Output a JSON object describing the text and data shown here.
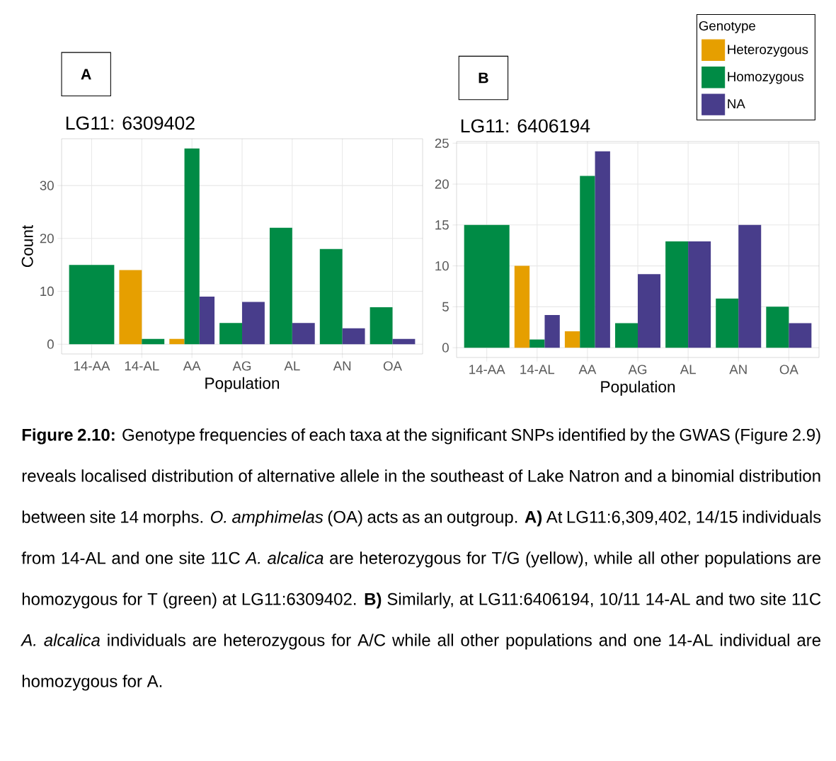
{
  "chart_data": [
    {
      "type": "bar",
      "title": "LG11: 6309402",
      "xlabel": "Population",
      "ylabel": "Count",
      "categories": [
        "14-AA",
        "14-AL",
        "AA",
        "AG",
        "AL",
        "AN",
        "OA"
      ],
      "series": [
        {
          "color": "#E69F00",
          "values": [
            null,
            14,
            1,
            null,
            null,
            null,
            null
          ]
        },
        {
          "color": "#008B45",
          "values": [
            15,
            1,
            37,
            4,
            22,
            18,
            7
          ]
        },
        {
          "color": "#483D8B",
          "values": [
            null,
            null,
            9,
            8,
            4,
            3,
            1
          ]
        }
      ],
      "ylim": [
        -1.85,
        38.85
      ],
      "yticks": [
        0,
        10,
        20,
        30
      ],
      "grid": true,
      "annotations": [
        "A",
        "**Figure 2.10:** Genotype frequencies of each taxa at the significant SNPs identified by the GWAS (Figure 2.9) reveals localised distribution of alternative allele in the southeast of Lake Natron and a binomial distribution between site 14 morphs. *O. amphimelas* (OA) acts as an outgroup. **A)** At LG11:6,309,402, 14/15 individuals from 14-AL and one site 11C *A. alcalica* are heterozygous for T/G (yellow), while all other populations are homozygous for T (green) at LG11:6309402. **B)** Similarly, at LG11:6406194, 10/11 14-AL and two site 11C *A. alcalica* individuals are heterozygous for A/C while all other populations and one 14-AL individual are homozygous for A."
      ]
    },
    {
      "type": "bar",
      "title": "LG11: 6406194",
      "xlabel": "Population",
      "categories": [
        "14-AA",
        "14-AL",
        "AA",
        "AG",
        "AL",
        "AN",
        "OA"
      ],
      "series": [
        {
          "name": "Heterozygous",
          "color": "#E69F00",
          "values": [
            null,
            10,
            2,
            null,
            null,
            null,
            null
          ]
        },
        {
          "name": "Homozygous",
          "color": "#008B45",
          "values": [
            15,
            1,
            21,
            3,
            13,
            6,
            5
          ]
        },
        {
          "name": "NA",
          "color": "#483D8B",
          "values": [
            null,
            4,
            24,
            9,
            13,
            15,
            3
          ]
        }
      ],
      "ylim": [
        -1.2,
        25.2
      ],
      "yticks": [
        0,
        5,
        10,
        15,
        20,
        25
      ],
      "grid": true,
      "legend": "top right",
      "legend_title": "Genotype",
      "annotations": [
        "B"
      ]
    }
  ]
}
